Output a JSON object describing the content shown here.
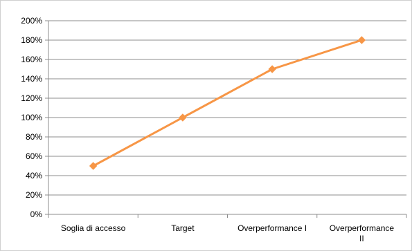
{
  "chart_data": {
    "type": "line",
    "categories": [
      "Soglia di accesso",
      "Target",
      "Overperformance I",
      "Overperformance II"
    ],
    "category_lines": [
      [
        "Soglia di accesso"
      ],
      [
        "Target"
      ],
      [
        "Overperformance I"
      ],
      [
        "Overperformance",
        "II"
      ]
    ],
    "series": [
      {
        "values": [
          50,
          100,
          150,
          180
        ],
        "color": "#f79646"
      }
    ],
    "y_ticks": [
      "0%",
      "20%",
      "40%",
      "60%",
      "80%",
      "100%",
      "120%",
      "140%",
      "160%",
      "180%",
      "200%"
    ],
    "ylim": [
      0,
      200
    ],
    "grid": true,
    "marker": "diamond",
    "title": "",
    "xlabel": "",
    "ylabel": ""
  }
}
